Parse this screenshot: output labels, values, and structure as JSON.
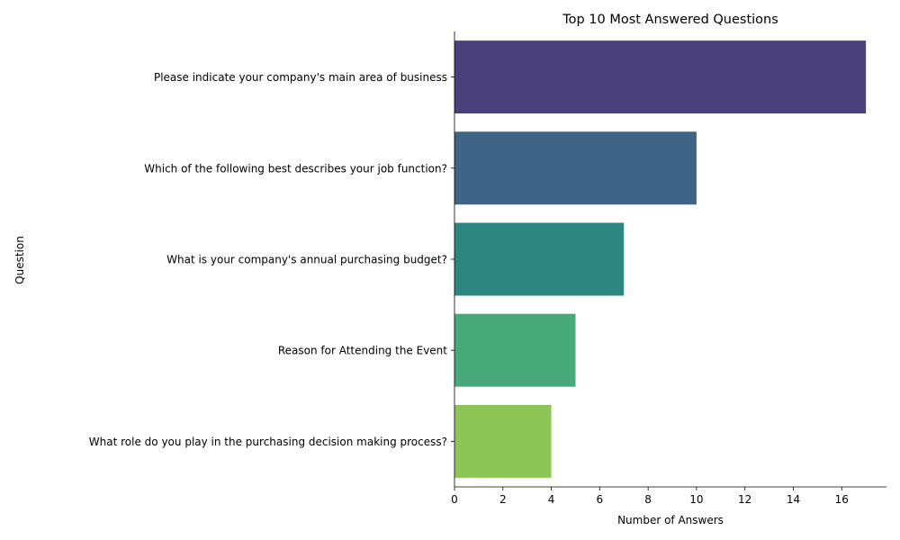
{
  "chart_data": {
    "type": "bar",
    "orientation": "horizontal",
    "title": "Top 10 Most Answered Questions",
    "xlabel": "Number of Answers",
    "ylabel": "Question",
    "xlim": [
      0,
      17.85
    ],
    "xticks": [
      0,
      2,
      4,
      6,
      8,
      10,
      12,
      14,
      16
    ],
    "grid": false,
    "categories": [
      "Please indicate your company's main area of business",
      "Which of the following best describes your job function?",
      "What is your company's annual purchasing budget?",
      "Reason for Attending the Event",
      "What role do you play in the purchasing decision making process?"
    ],
    "values": [
      17,
      10,
      7,
      5,
      4
    ],
    "colors": [
      "#4a417c",
      "#3e6585",
      "#2e8680",
      "#47a878",
      "#8dc556"
    ]
  }
}
